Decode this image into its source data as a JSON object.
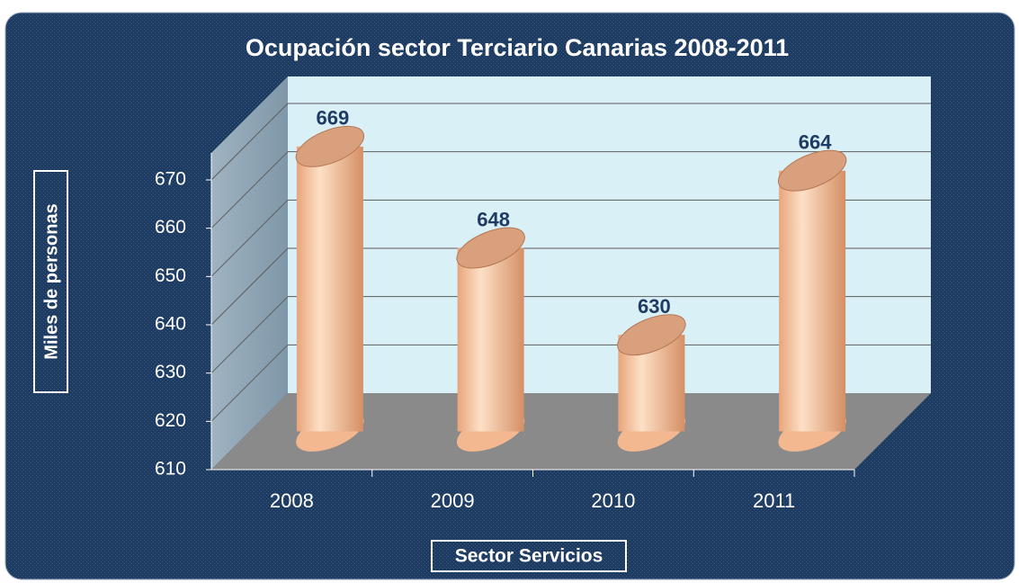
{
  "chart_data": {
    "type": "bar",
    "title": "Ocupación sector  Terciario Canarias 2008-2011",
    "categories": [
      "2008",
      "2009",
      "2010",
      "2011"
    ],
    "values": [
      669,
      648,
      630,
      664
    ],
    "color": "#f3b88f",
    "xlabel": "Sector Servicios",
    "ylabel": "Miles de personas",
    "ylim": [
      610,
      670
    ],
    "yticks": [
      610,
      620,
      630,
      640,
      650,
      660,
      670
    ],
    "grid": true
  }
}
